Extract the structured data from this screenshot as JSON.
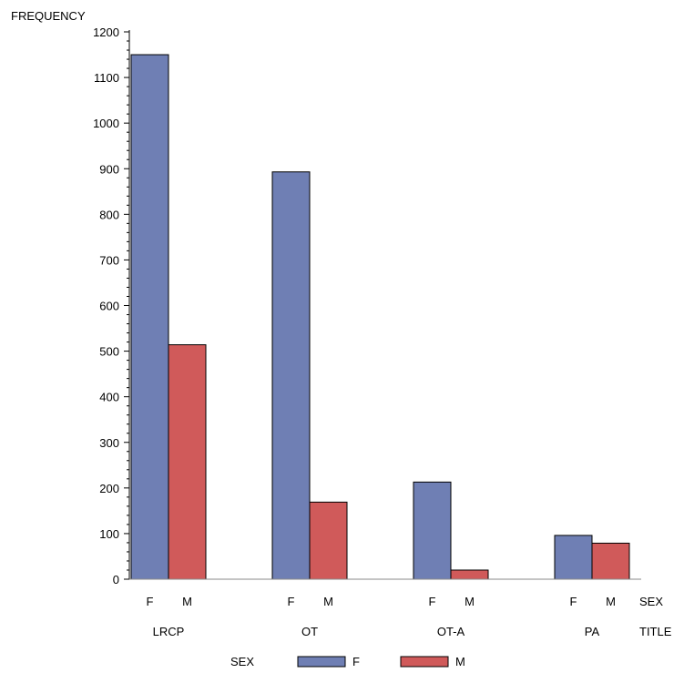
{
  "chart_data": {
    "type": "bar",
    "ylabel": "FREQUENCY",
    "ylim": [
      0,
      1200
    ],
    "yticks": [
      0,
      100,
      200,
      300,
      400,
      500,
      600,
      700,
      800,
      900,
      1000,
      1100,
      1200
    ],
    "group_axis_label": "TITLE",
    "subgroup_axis_label": "SEX",
    "categories": [
      "LRCP",
      "OT",
      "OT-A",
      "PA"
    ],
    "subgroups": [
      "F",
      "M"
    ],
    "series": [
      {
        "name": "F",
        "color": "#6f7fb4",
        "values": [
          1150,
          893,
          213,
          96
        ]
      },
      {
        "name": "M",
        "color": "#d05a5a",
        "values": [
          514,
          169,
          20,
          79
        ]
      }
    ],
    "legend": {
      "title": "SEX",
      "placement": "bottom",
      "entries": [
        "F",
        "M"
      ]
    },
    "grid": false
  }
}
